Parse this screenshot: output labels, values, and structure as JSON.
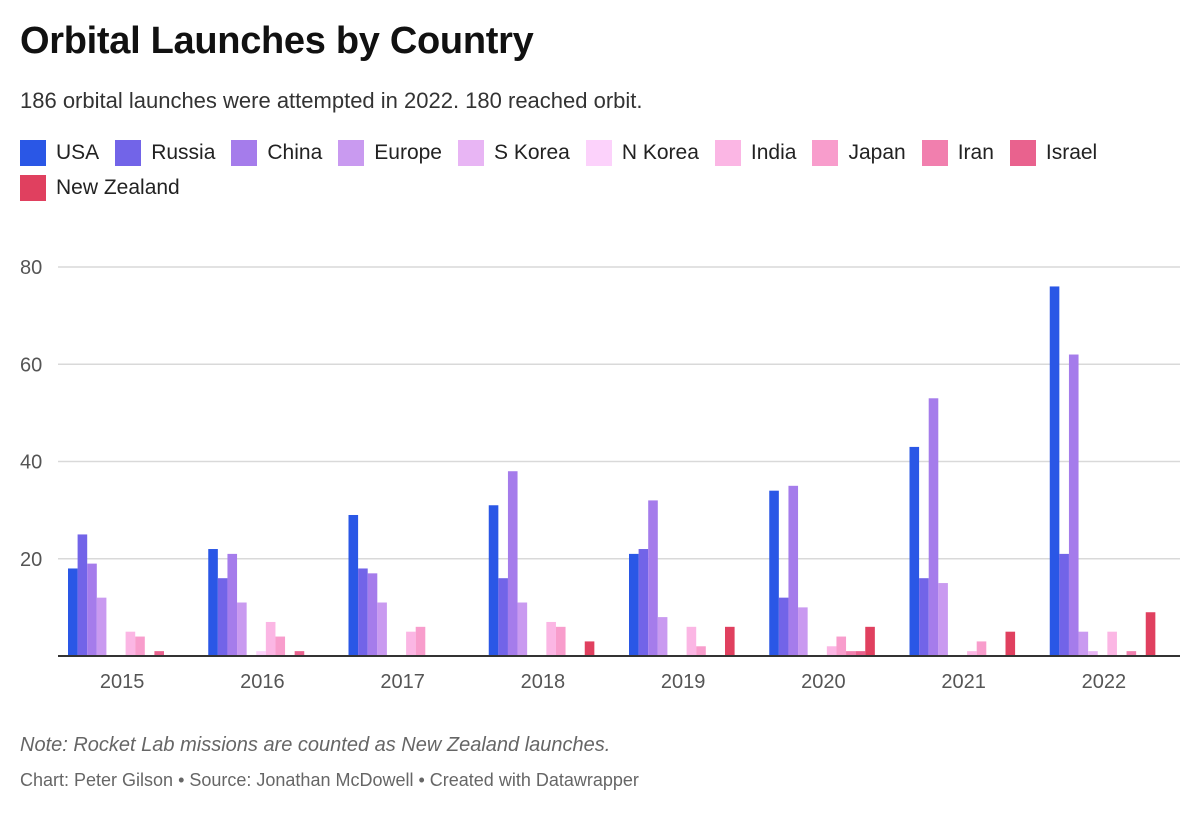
{
  "chart_data": {
    "type": "bar",
    "title": "Orbital Launches by Country",
    "subtitle": "186 orbital launches were attempted in 2022. 180 reached orbit.",
    "categories": [
      "2015",
      "2016",
      "2017",
      "2018",
      "2019",
      "2020",
      "2021",
      "2022"
    ],
    "series": [
      {
        "name": "USA",
        "color": "#2a57e6",
        "values": [
          18,
          22,
          29,
          31,
          21,
          34,
          43,
          76
        ]
      },
      {
        "name": "Russia",
        "color": "#7264e8",
        "values": [
          25,
          16,
          18,
          16,
          22,
          12,
          16,
          21
        ]
      },
      {
        "name": "China",
        "color": "#a57ceb",
        "values": [
          19,
          21,
          17,
          38,
          32,
          35,
          53,
          62
        ]
      },
      {
        "name": "Europe",
        "color": "#c99af0",
        "values": [
          12,
          11,
          11,
          11,
          8,
          10,
          15,
          5
        ]
      },
      {
        "name": "S Korea",
        "color": "#e8b5f4",
        "values": [
          0,
          0,
          0,
          0,
          0,
          0,
          0,
          1
        ]
      },
      {
        "name": "N Korea",
        "color": "#fcd2fb",
        "values": [
          0,
          1,
          0,
          0,
          0,
          0,
          0,
          0
        ]
      },
      {
        "name": "India",
        "color": "#fbb6e4",
        "values": [
          5,
          7,
          5,
          7,
          6,
          2,
          1,
          5
        ]
      },
      {
        "name": "Japan",
        "color": "#f89dcc",
        "values": [
          4,
          4,
          6,
          6,
          2,
          4,
          3,
          0
        ]
      },
      {
        "name": "Iran",
        "color": "#f17fae",
        "values": [
          0,
          0,
          0,
          0,
          0,
          1,
          0,
          1
        ]
      },
      {
        "name": "Israel",
        "color": "#e9628e",
        "values": [
          1,
          1,
          0,
          0,
          0,
          1,
          0,
          0
        ]
      },
      {
        "name": "New Zealand",
        "color": "#e0405f",
        "values": [
          0,
          0,
          0,
          3,
          6,
          6,
          5,
          9
        ]
      }
    ],
    "xlabel": "",
    "ylabel": "",
    "ylim": [
      0,
      80
    ],
    "yticks": [
      20,
      40,
      60,
      80
    ],
    "grid": true,
    "legend_position": "top"
  },
  "footer": {
    "note": "Note: Rocket Lab missions are counted as New Zealand launches.",
    "credit": "Chart: Peter Gilson • Source: Jonathan McDowell • Created with Datawrapper"
  }
}
